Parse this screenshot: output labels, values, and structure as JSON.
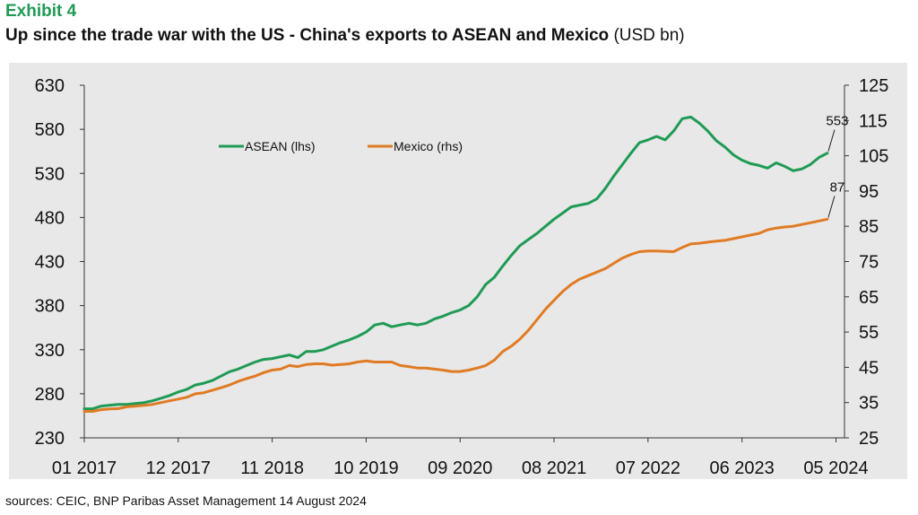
{
  "header": {
    "exhibit": "Exhibit 4",
    "title_main": "Up since the trade war with the US - China's exports to ASEAN and Mexico",
    "title_unit": "(USD bn)"
  },
  "source": "sources: CEIC, BNP Paribas Asset Management  14 August 2024",
  "colors": {
    "asean": "#1f9a55",
    "mexico": "#e07b24",
    "background": "#e8e8e8"
  },
  "chart_data": {
    "type": "line",
    "x_tick_labels": [
      "01 2017",
      "12 2017",
      "11 2018",
      "10 2019",
      "09 2020",
      "08 2021",
      "07 2022",
      "06 2023",
      "05 2024"
    ],
    "x_range_months": [
      0,
      89
    ],
    "y_left": {
      "ticks": [
        230,
        280,
        330,
        380,
        430,
        480,
        530,
        580,
        630
      ],
      "range": [
        230,
        630
      ]
    },
    "y_right": {
      "ticks": [
        25,
        35,
        45,
        55,
        65,
        75,
        85,
        95,
        105,
        115,
        125
      ],
      "range": [
        25,
        125
      ]
    },
    "legend": {
      "placement": "top-left",
      "entries": [
        "ASEAN (lhs)",
        "Mexico (rhs)"
      ]
    },
    "series": [
      {
        "name": "ASEAN (lhs)",
        "axis": "left",
        "points": [
          [
            0,
            263
          ],
          [
            1,
            263
          ],
          [
            2,
            266
          ],
          [
            3,
            267
          ],
          [
            4,
            268
          ],
          [
            5,
            268
          ],
          [
            6,
            269
          ],
          [
            7,
            270
          ],
          [
            8,
            272
          ],
          [
            9,
            275
          ],
          [
            10,
            278
          ],
          [
            11,
            282
          ],
          [
            12,
            285
          ],
          [
            13,
            290
          ],
          [
            14,
            292
          ],
          [
            15,
            295
          ],
          [
            16,
            300
          ],
          [
            17,
            305
          ],
          [
            18,
            308
          ],
          [
            19,
            312
          ],
          [
            20,
            316
          ],
          [
            21,
            319
          ],
          [
            22,
            320
          ],
          [
            23,
            322
          ],
          [
            24,
            324
          ],
          [
            25,
            321
          ],
          [
            26,
            328
          ],
          [
            27,
            328
          ],
          [
            28,
            330
          ],
          [
            29,
            334
          ],
          [
            30,
            338
          ],
          [
            31,
            341
          ],
          [
            32,
            345
          ],
          [
            33,
            350
          ],
          [
            34,
            358
          ],
          [
            35,
            360
          ],
          [
            36,
            356
          ],
          [
            37,
            358
          ],
          [
            38,
            360
          ],
          [
            39,
            358
          ],
          [
            40,
            360
          ],
          [
            41,
            365
          ],
          [
            42,
            368
          ],
          [
            43,
            372
          ],
          [
            44,
            375
          ],
          [
            45,
            380
          ],
          [
            46,
            390
          ],
          [
            47,
            404
          ],
          [
            48,
            412
          ],
          [
            49,
            425
          ],
          [
            50,
            437
          ],
          [
            51,
            448
          ],
          [
            52,
            455
          ],
          [
            53,
            462
          ],
          [
            54,
            470
          ],
          [
            55,
            478
          ],
          [
            56,
            485
          ],
          [
            57,
            492
          ],
          [
            58,
            494
          ],
          [
            59,
            496
          ],
          [
            60,
            501
          ],
          [
            61,
            513
          ],
          [
            62,
            527
          ],
          [
            63,
            540
          ],
          [
            64,
            553
          ],
          [
            65,
            565
          ],
          [
            66,
            568
          ],
          [
            67,
            572
          ],
          [
            68,
            568
          ],
          [
            69,
            578
          ],
          [
            70,
            592
          ],
          [
            71,
            594
          ],
          [
            72,
            587
          ],
          [
            73,
            578
          ],
          [
            74,
            567
          ],
          [
            75,
            560
          ],
          [
            76,
            551
          ],
          [
            77,
            545
          ],
          [
            78,
            541
          ],
          [
            79,
            539
          ],
          [
            80,
            536
          ],
          [
            81,
            542
          ],
          [
            82,
            538
          ],
          [
            83,
            533
          ],
          [
            84,
            535
          ],
          [
            85,
            540
          ],
          [
            86,
            548
          ],
          [
            87,
            553
          ]
        ]
      },
      {
        "name": "Mexico (rhs)",
        "axis": "right",
        "points": [
          [
            0,
            32.5
          ],
          [
            1,
            32.5
          ],
          [
            2,
            33.0
          ],
          [
            3,
            33.2
          ],
          [
            4,
            33.3
          ],
          [
            5,
            33.8
          ],
          [
            6,
            34.0
          ],
          [
            7,
            34.2
          ],
          [
            8,
            34.5
          ],
          [
            9,
            35.0
          ],
          [
            10,
            35.5
          ],
          [
            11,
            36.0
          ],
          [
            12,
            36.5
          ],
          [
            13,
            37.5
          ],
          [
            14,
            37.8
          ],
          [
            15,
            38.5
          ],
          [
            16,
            39.2
          ],
          [
            17,
            40.0
          ],
          [
            18,
            41.0
          ],
          [
            19,
            41.8
          ],
          [
            20,
            42.5
          ],
          [
            21,
            43.5
          ],
          [
            22,
            44.2
          ],
          [
            23,
            44.5
          ],
          [
            24,
            45.5
          ],
          [
            25,
            45.2
          ],
          [
            26,
            45.8
          ],
          [
            27,
            46.0
          ],
          [
            28,
            46.0
          ],
          [
            29,
            45.6
          ],
          [
            30,
            45.8
          ],
          [
            31,
            46.0
          ],
          [
            32,
            46.5
          ],
          [
            33,
            46.8
          ],
          [
            34,
            46.5
          ],
          [
            35,
            46.5
          ],
          [
            36,
            46.5
          ],
          [
            37,
            45.5
          ],
          [
            38,
            45.2
          ],
          [
            39,
            44.8
          ],
          [
            40,
            44.8
          ],
          [
            41,
            44.5
          ],
          [
            42,
            44.2
          ],
          [
            43,
            43.8
          ],
          [
            44,
            43.8
          ],
          [
            45,
            44.2
          ],
          [
            46,
            44.8
          ],
          [
            47,
            45.5
          ],
          [
            48,
            47.0
          ],
          [
            49,
            49.5
          ],
          [
            50,
            51.0
          ],
          [
            51,
            53.0
          ],
          [
            52,
            55.5
          ],
          [
            53,
            58.5
          ],
          [
            54,
            61.5
          ],
          [
            55,
            64.0
          ],
          [
            56,
            66.5
          ],
          [
            57,
            68.5
          ],
          [
            58,
            70.0
          ],
          [
            59,
            71.0
          ],
          [
            60,
            72.0
          ],
          [
            61,
            73.0
          ],
          [
            62,
            74.5
          ],
          [
            63,
            76.0
          ],
          [
            64,
            77.0
          ],
          [
            65,
            77.8
          ],
          [
            66,
            78.0
          ],
          [
            67,
            78.0
          ],
          [
            68,
            77.9
          ],
          [
            69,
            77.8
          ],
          [
            70,
            79.0
          ],
          [
            71,
            80.0
          ],
          [
            72,
            80.2
          ],
          [
            73,
            80.5
          ],
          [
            74,
            80.8
          ],
          [
            75,
            81.0
          ],
          [
            76,
            81.5
          ],
          [
            77,
            82.0
          ],
          [
            78,
            82.5
          ],
          [
            79,
            83.0
          ],
          [
            80,
            84.0
          ],
          [
            81,
            84.5
          ],
          [
            82,
            84.8
          ],
          [
            83,
            85.0
          ],
          [
            84,
            85.5
          ],
          [
            85,
            86.0
          ],
          [
            86,
            86.5
          ],
          [
            87,
            87.0
          ]
        ]
      }
    ],
    "annotations": [
      {
        "series": "ASEAN (lhs)",
        "text": "553",
        "x": 87,
        "value": 553
      },
      {
        "series": "Mexico (rhs)",
        "text": "87",
        "x": 87,
        "value": 87
      }
    ]
  }
}
